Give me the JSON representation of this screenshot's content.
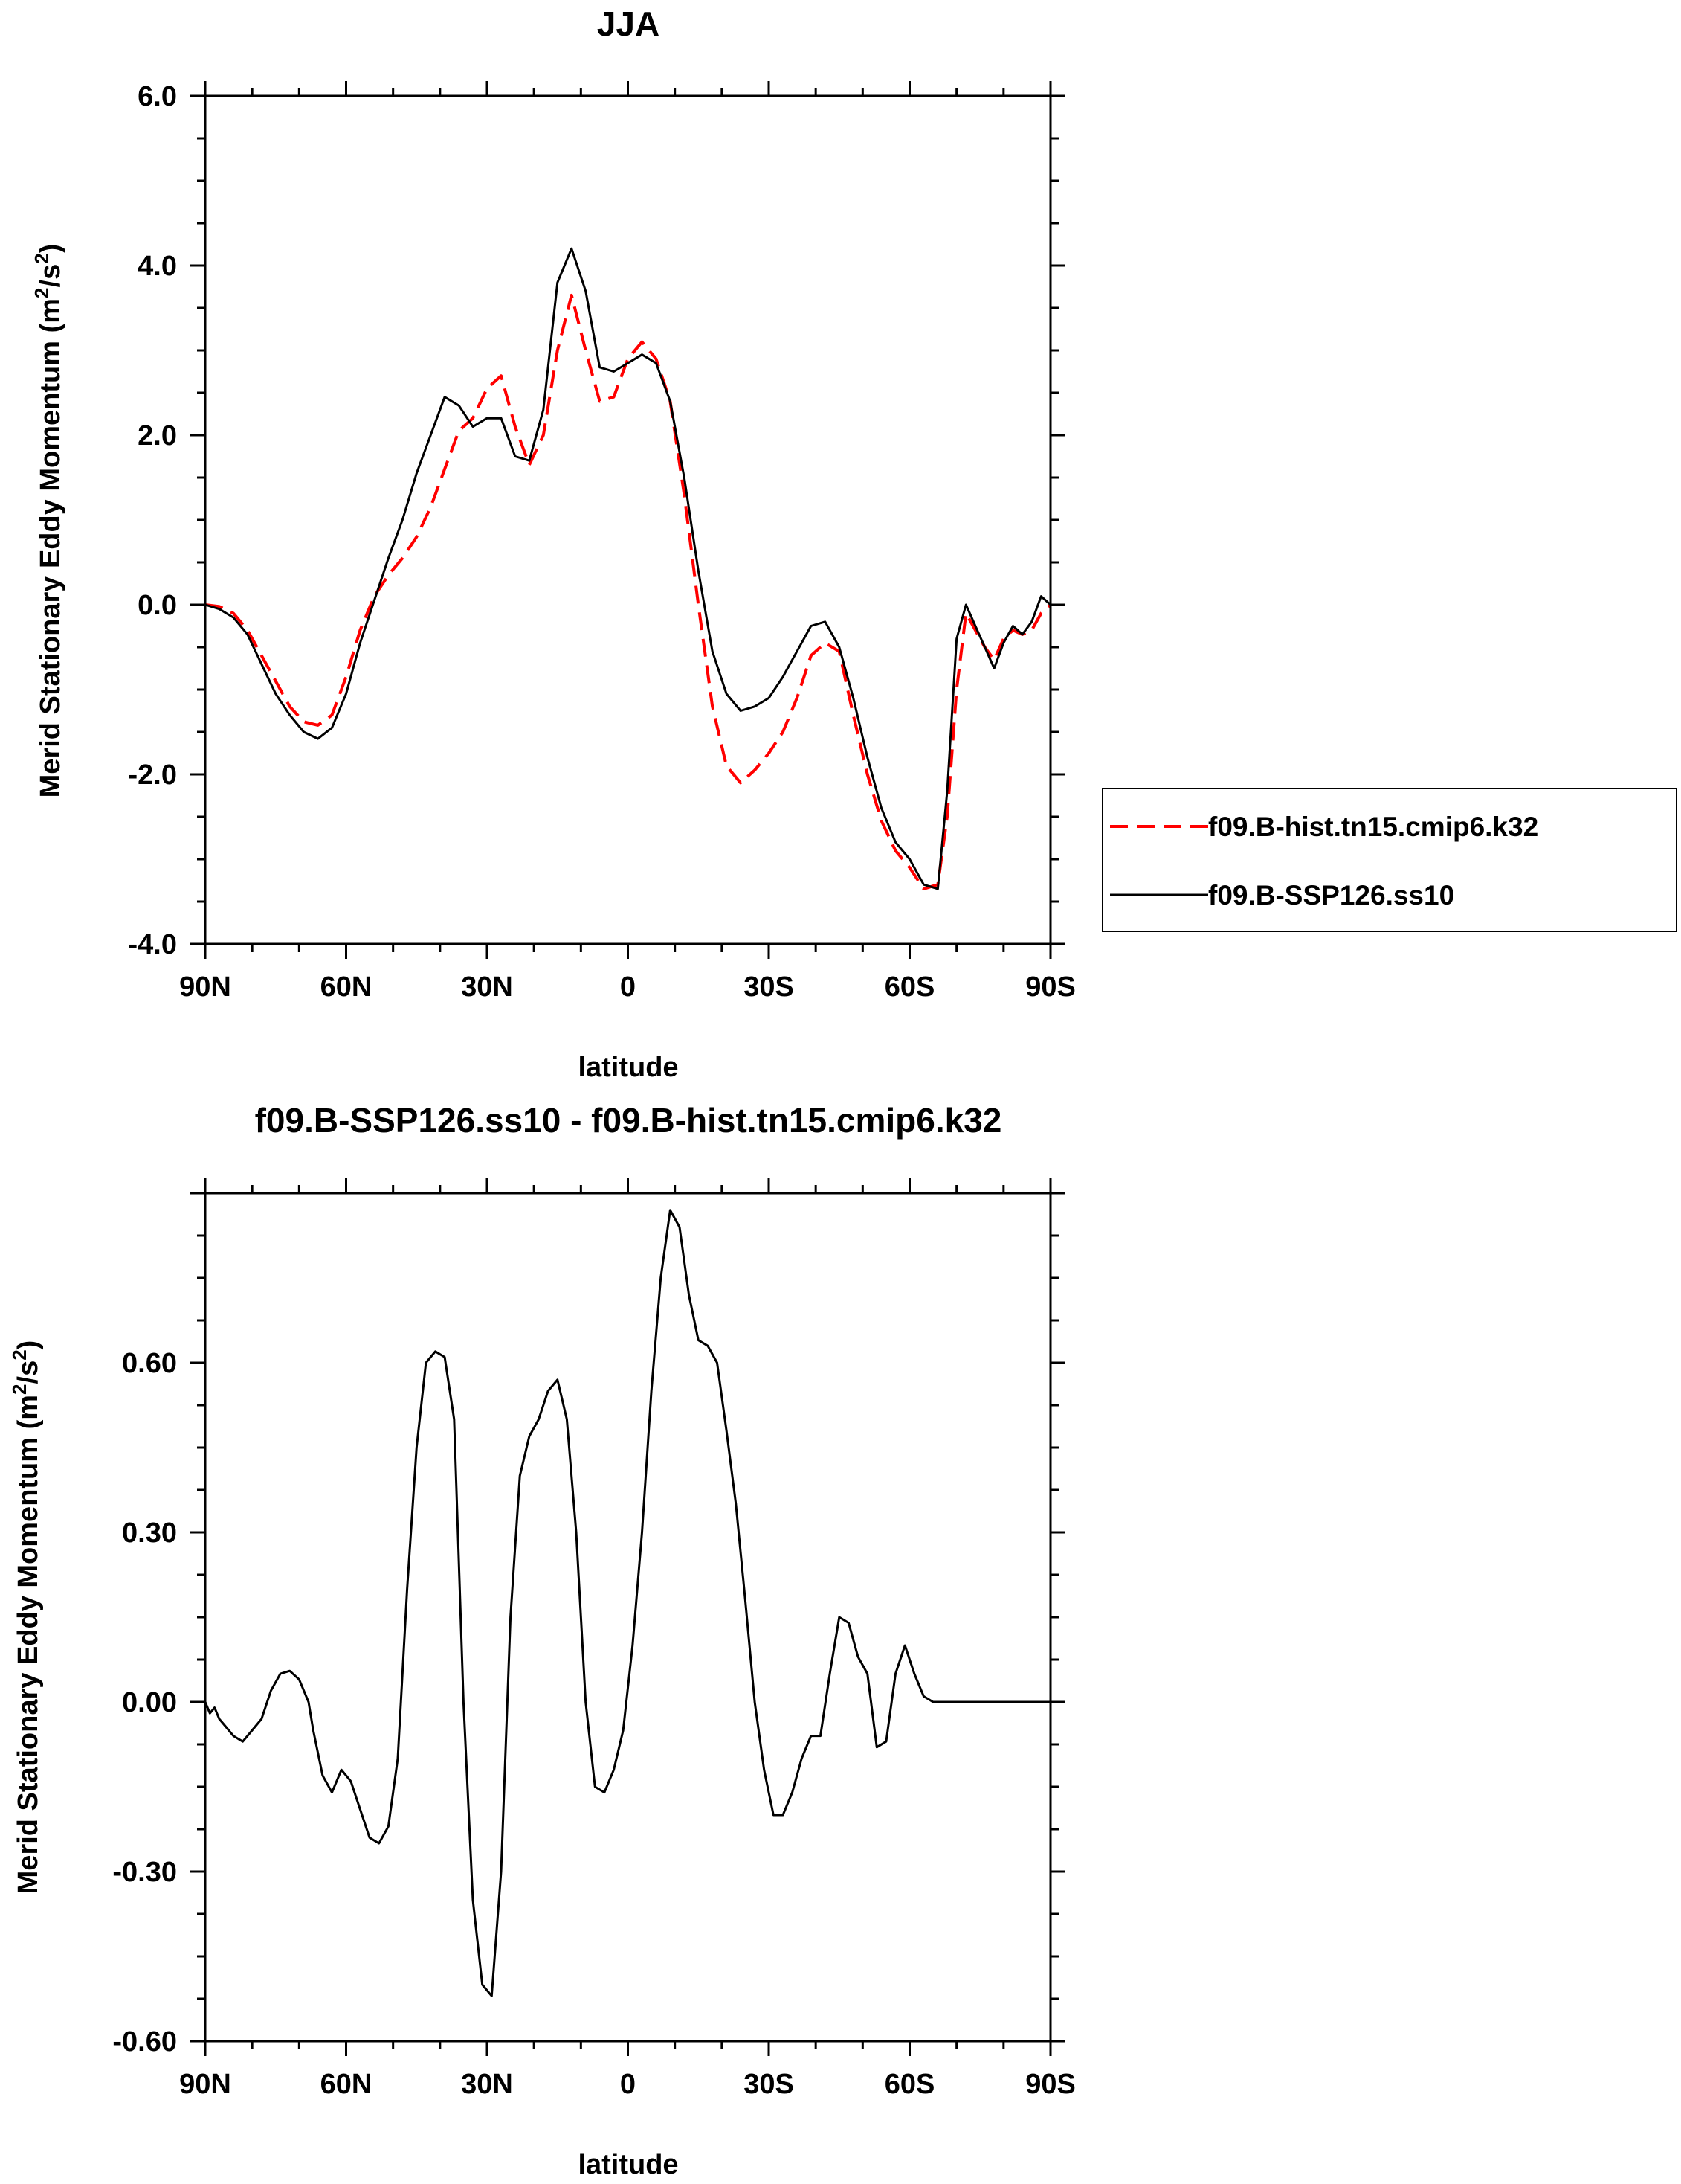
{
  "chart_data": [
    {
      "type": "line",
      "title": "JJA",
      "xlabel": "latitude",
      "ylabel_main": "Merid Stationary Eddy Momentum (m",
      "ylabel_sup1": "2",
      "ylabel_mid": "/s",
      "ylabel_sup2": "2",
      "ylabel_end": ")",
      "xlim": [
        -90,
        90
      ],
      "ylim": [
        -4.0,
        6.0
      ],
      "xticks": [
        {
          "v": -90,
          "label": "90N"
        },
        {
          "v": -60,
          "label": "60N"
        },
        {
          "v": -30,
          "label": "30N"
        },
        {
          "v": 0,
          "label": "0"
        },
        {
          "v": 30,
          "label": "30S"
        },
        {
          "v": 60,
          "label": "60S"
        },
        {
          "v": 90,
          "label": "90S"
        }
      ],
      "yticks": [
        {
          "v": -4.0,
          "label": "-4.0"
        },
        {
          "v": -2.0,
          "label": "-2.0"
        },
        {
          "v": 0.0,
          "label": "0.0"
        },
        {
          "v": 2.0,
          "label": "2.0"
        },
        {
          "v": 4.0,
          "label": "4.0"
        },
        {
          "v": 6.0,
          "label": "6.0"
        }
      ],
      "legend_position": "right",
      "series": [
        {
          "name": "f09.B-hist.tn15.cmip6.k32",
          "color": "#ff0000",
          "dash": "dashed",
          "x": [
            -90,
            -87,
            -84,
            -81,
            -78,
            -75,
            -72,
            -69,
            -66,
            -63,
            -60,
            -57,
            -54,
            -51,
            -48,
            -45,
            -42,
            -39,
            -36,
            -33,
            -30,
            -27,
            -24,
            -21,
            -18,
            -15,
            -12,
            -9,
            -6,
            -3,
            0,
            3,
            6,
            9,
            12,
            15,
            18,
            21,
            24,
            27,
            30,
            33,
            36,
            39,
            42,
            45,
            48,
            51,
            54,
            57,
            60,
            63,
            66,
            68,
            70,
            72,
            74,
            76,
            78,
            80,
            82,
            84,
            86,
            88,
            90
          ],
          "y": [
            0.0,
            -0.02,
            -0.1,
            -0.3,
            -0.6,
            -0.9,
            -1.2,
            -1.38,
            -1.42,
            -1.3,
            -0.85,
            -0.3,
            0.1,
            0.35,
            0.55,
            0.8,
            1.15,
            1.6,
            2.05,
            2.2,
            2.55,
            2.7,
            2.1,
            1.65,
            2.0,
            3.0,
            3.65,
            3.0,
            2.4,
            2.45,
            2.9,
            3.1,
            2.9,
            2.4,
            1.3,
            0.0,
            -1.2,
            -1.9,
            -2.1,
            -1.95,
            -1.75,
            -1.5,
            -1.1,
            -0.6,
            -0.45,
            -0.55,
            -1.3,
            -2.0,
            -2.55,
            -2.9,
            -3.1,
            -3.35,
            -3.3,
            -2.5,
            -1.0,
            -0.1,
            -0.3,
            -0.5,
            -0.65,
            -0.4,
            -0.3,
            -0.35,
            -0.3,
            -0.1,
            0.0
          ]
        },
        {
          "name": "f09.B-SSP126.ss10",
          "color": "#000000",
          "dash": "solid",
          "x": [
            -90,
            -87,
            -84,
            -81,
            -78,
            -75,
            -72,
            -69,
            -66,
            -63,
            -60,
            -57,
            -54,
            -51,
            -48,
            -45,
            -42,
            -39,
            -36,
            -33,
            -30,
            -27,
            -24,
            -21,
            -18,
            -15,
            -12,
            -9,
            -6,
            -3,
            0,
            3,
            6,
            9,
            12,
            15,
            18,
            21,
            24,
            27,
            30,
            33,
            36,
            39,
            42,
            45,
            48,
            51,
            54,
            57,
            60,
            63,
            66,
            68,
            70,
            72,
            74,
            76,
            78,
            80,
            82,
            84,
            86,
            88,
            90
          ],
          "y": [
            0.0,
            -0.05,
            -0.15,
            -0.35,
            -0.7,
            -1.05,
            -1.3,
            -1.5,
            -1.58,
            -1.45,
            -1.05,
            -0.45,
            0.05,
            0.55,
            1.0,
            1.55,
            2.0,
            2.45,
            2.35,
            2.1,
            2.2,
            2.2,
            1.75,
            1.7,
            2.3,
            3.8,
            4.2,
            3.7,
            2.8,
            2.75,
            2.85,
            2.95,
            2.85,
            2.4,
            1.5,
            0.4,
            -0.55,
            -1.05,
            -1.25,
            -1.2,
            -1.1,
            -0.85,
            -0.55,
            -0.25,
            -0.2,
            -0.5,
            -1.1,
            -1.8,
            -2.4,
            -2.8,
            -3.0,
            -3.3,
            -3.35,
            -2.2,
            -0.4,
            0.0,
            -0.25,
            -0.5,
            -0.75,
            -0.45,
            -0.25,
            -0.35,
            -0.2,
            0.1,
            0.0
          ]
        }
      ]
    },
    {
      "type": "line",
      "title": "f09.B-SSP126.ss10 - f09.B-hist.tn15.cmip6.k32",
      "xlabel": "latitude",
      "ylabel_main": "Merid Stationary Eddy Momentum (m",
      "ylabel_sup1": "2",
      "ylabel_mid": "/s",
      "ylabel_sup2": "2",
      "ylabel_end": ")",
      "xlim": [
        -90,
        90
      ],
      "ylim": [
        -0.6,
        0.9
      ],
      "xticks": [
        {
          "v": -90,
          "label": "90N"
        },
        {
          "v": -60,
          "label": "60N"
        },
        {
          "v": -30,
          "label": "30N"
        },
        {
          "v": 0,
          "label": "0"
        },
        {
          "v": 30,
          "label": "30S"
        },
        {
          "v": 60,
          "label": "60S"
        },
        {
          "v": 90,
          "label": "90S"
        }
      ],
      "yticks": [
        {
          "v": -0.6,
          "label": "-0.60"
        },
        {
          "v": -0.3,
          "label": "-0.30"
        },
        {
          "v": 0.0,
          "label": "0.00"
        },
        {
          "v": 0.3,
          "label": "0.30"
        },
        {
          "v": 0.6,
          "label": "0.60"
        }
      ],
      "series": [
        {
          "name": "",
          "color": "#000000",
          "dash": "solid",
          "x": [
            -90,
            -89,
            -88,
            -87,
            -86,
            -84,
            -82,
            -80,
            -78,
            -76,
            -74,
            -72,
            -70,
            -68,
            -67,
            -65,
            -63,
            -61,
            -59,
            -57,
            -55,
            -53,
            -51,
            -49,
            -47,
            -45,
            -43,
            -41,
            -39,
            -37,
            -35,
            -33,
            -31,
            -29,
            -27,
            -25,
            -23,
            -21,
            -19,
            -17,
            -15,
            -13,
            -11,
            -9,
            -7,
            -5,
            -3,
            -1,
            1,
            3,
            5,
            7,
            9,
            11,
            13,
            15,
            17,
            19,
            21,
            23,
            25,
            27,
            29,
            31,
            33,
            35,
            37,
            39,
            41,
            43,
            45,
            47,
            49,
            51,
            53,
            55,
            57,
            59,
            61,
            63,
            65,
            67,
            69,
            71,
            73,
            75,
            77,
            79,
            81,
            83,
            85,
            87,
            89,
            90
          ],
          "y": [
            0.0,
            -0.02,
            -0.01,
            -0.03,
            -0.04,
            -0.06,
            -0.07,
            -0.05,
            -0.03,
            0.02,
            0.05,
            0.055,
            0.04,
            0.0,
            -0.05,
            -0.13,
            -0.16,
            -0.12,
            -0.14,
            -0.19,
            -0.24,
            -0.25,
            -0.22,
            -0.1,
            0.2,
            0.45,
            0.6,
            0.62,
            0.61,
            0.5,
            0.0,
            -0.35,
            -0.5,
            -0.52,
            -0.3,
            0.15,
            0.4,
            0.47,
            0.5,
            0.55,
            0.57,
            0.5,
            0.3,
            0.0,
            -0.15,
            -0.16,
            -0.12,
            -0.05,
            0.1,
            0.3,
            0.55,
            0.75,
            0.87,
            0.84,
            0.72,
            0.64,
            0.63,
            0.6,
            0.48,
            0.35,
            0.18,
            0.0,
            -0.12,
            -0.2,
            -0.2,
            -0.16,
            -0.1,
            -0.06,
            -0.06,
            0.05,
            0.15,
            0.14,
            0.08,
            0.05,
            -0.08,
            -0.07,
            0.05,
            0.1,
            0.05,
            0.01,
            0.0,
            0.0,
            0.0,
            0.0,
            0.0,
            0.0,
            0.0,
            0.0,
            0.0,
            0.0,
            0.0,
            0.0,
            0.0,
            0.0
          ]
        }
      ]
    }
  ]
}
